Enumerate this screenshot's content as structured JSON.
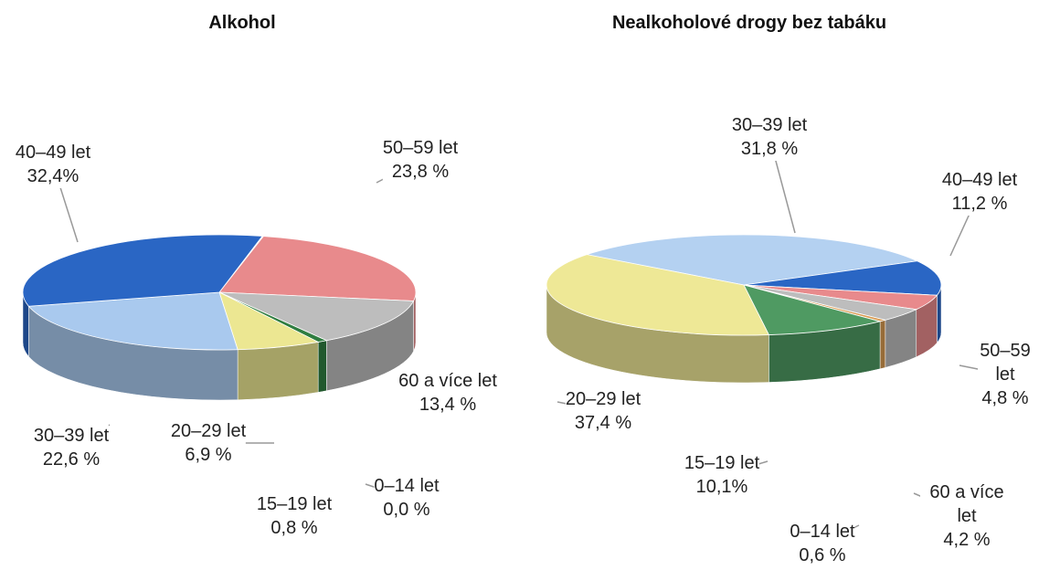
{
  "chart_data": [
    {
      "type": "pie",
      "title": "Alkohol",
      "categories": [
        "50–59 let",
        "60 a více let",
        "0–14 let",
        "15–19 let",
        "20–29 let",
        "30–39 let",
        "40–49 let"
      ],
      "values": [
        23.8,
        13.4,
        0.0,
        0.8,
        6.9,
        22.6,
        32.4
      ],
      "value_labels": [
        "23,8 %",
        "13,4 %",
        "0,0 %",
        "0,8 %",
        "6,9 %",
        "22,6 %",
        "32,4%"
      ],
      "colors": [
        "#e88a8c",
        "#bdbdbd",
        "#c8803e",
        "#2f7d40",
        "#ece792",
        "#a9c9ee",
        "#2a66c4"
      ]
    },
    {
      "type": "pie",
      "title": "Nealkoholové drogy bez tabáku",
      "categories": [
        "30–39 let",
        "40–49 let",
        "50–59 let",
        "60 a více let",
        "0–14 let",
        "15–19 let",
        "20–29 let"
      ],
      "values": [
        31.8,
        11.2,
        4.8,
        4.2,
        0.6,
        10.1,
        37.4
      ],
      "value_labels": [
        "31,8 %",
        "11,2 %",
        "4,8 %",
        "4,2 %",
        "0,6 %",
        "10,1%",
        "37,4 %"
      ],
      "colors": [
        "#b4d1f1",
        "#2a66c4",
        "#e88a8c",
        "#bdbdbd",
        "#d89a50",
        "#4f9a62",
        "#eee896"
      ]
    }
  ]
}
